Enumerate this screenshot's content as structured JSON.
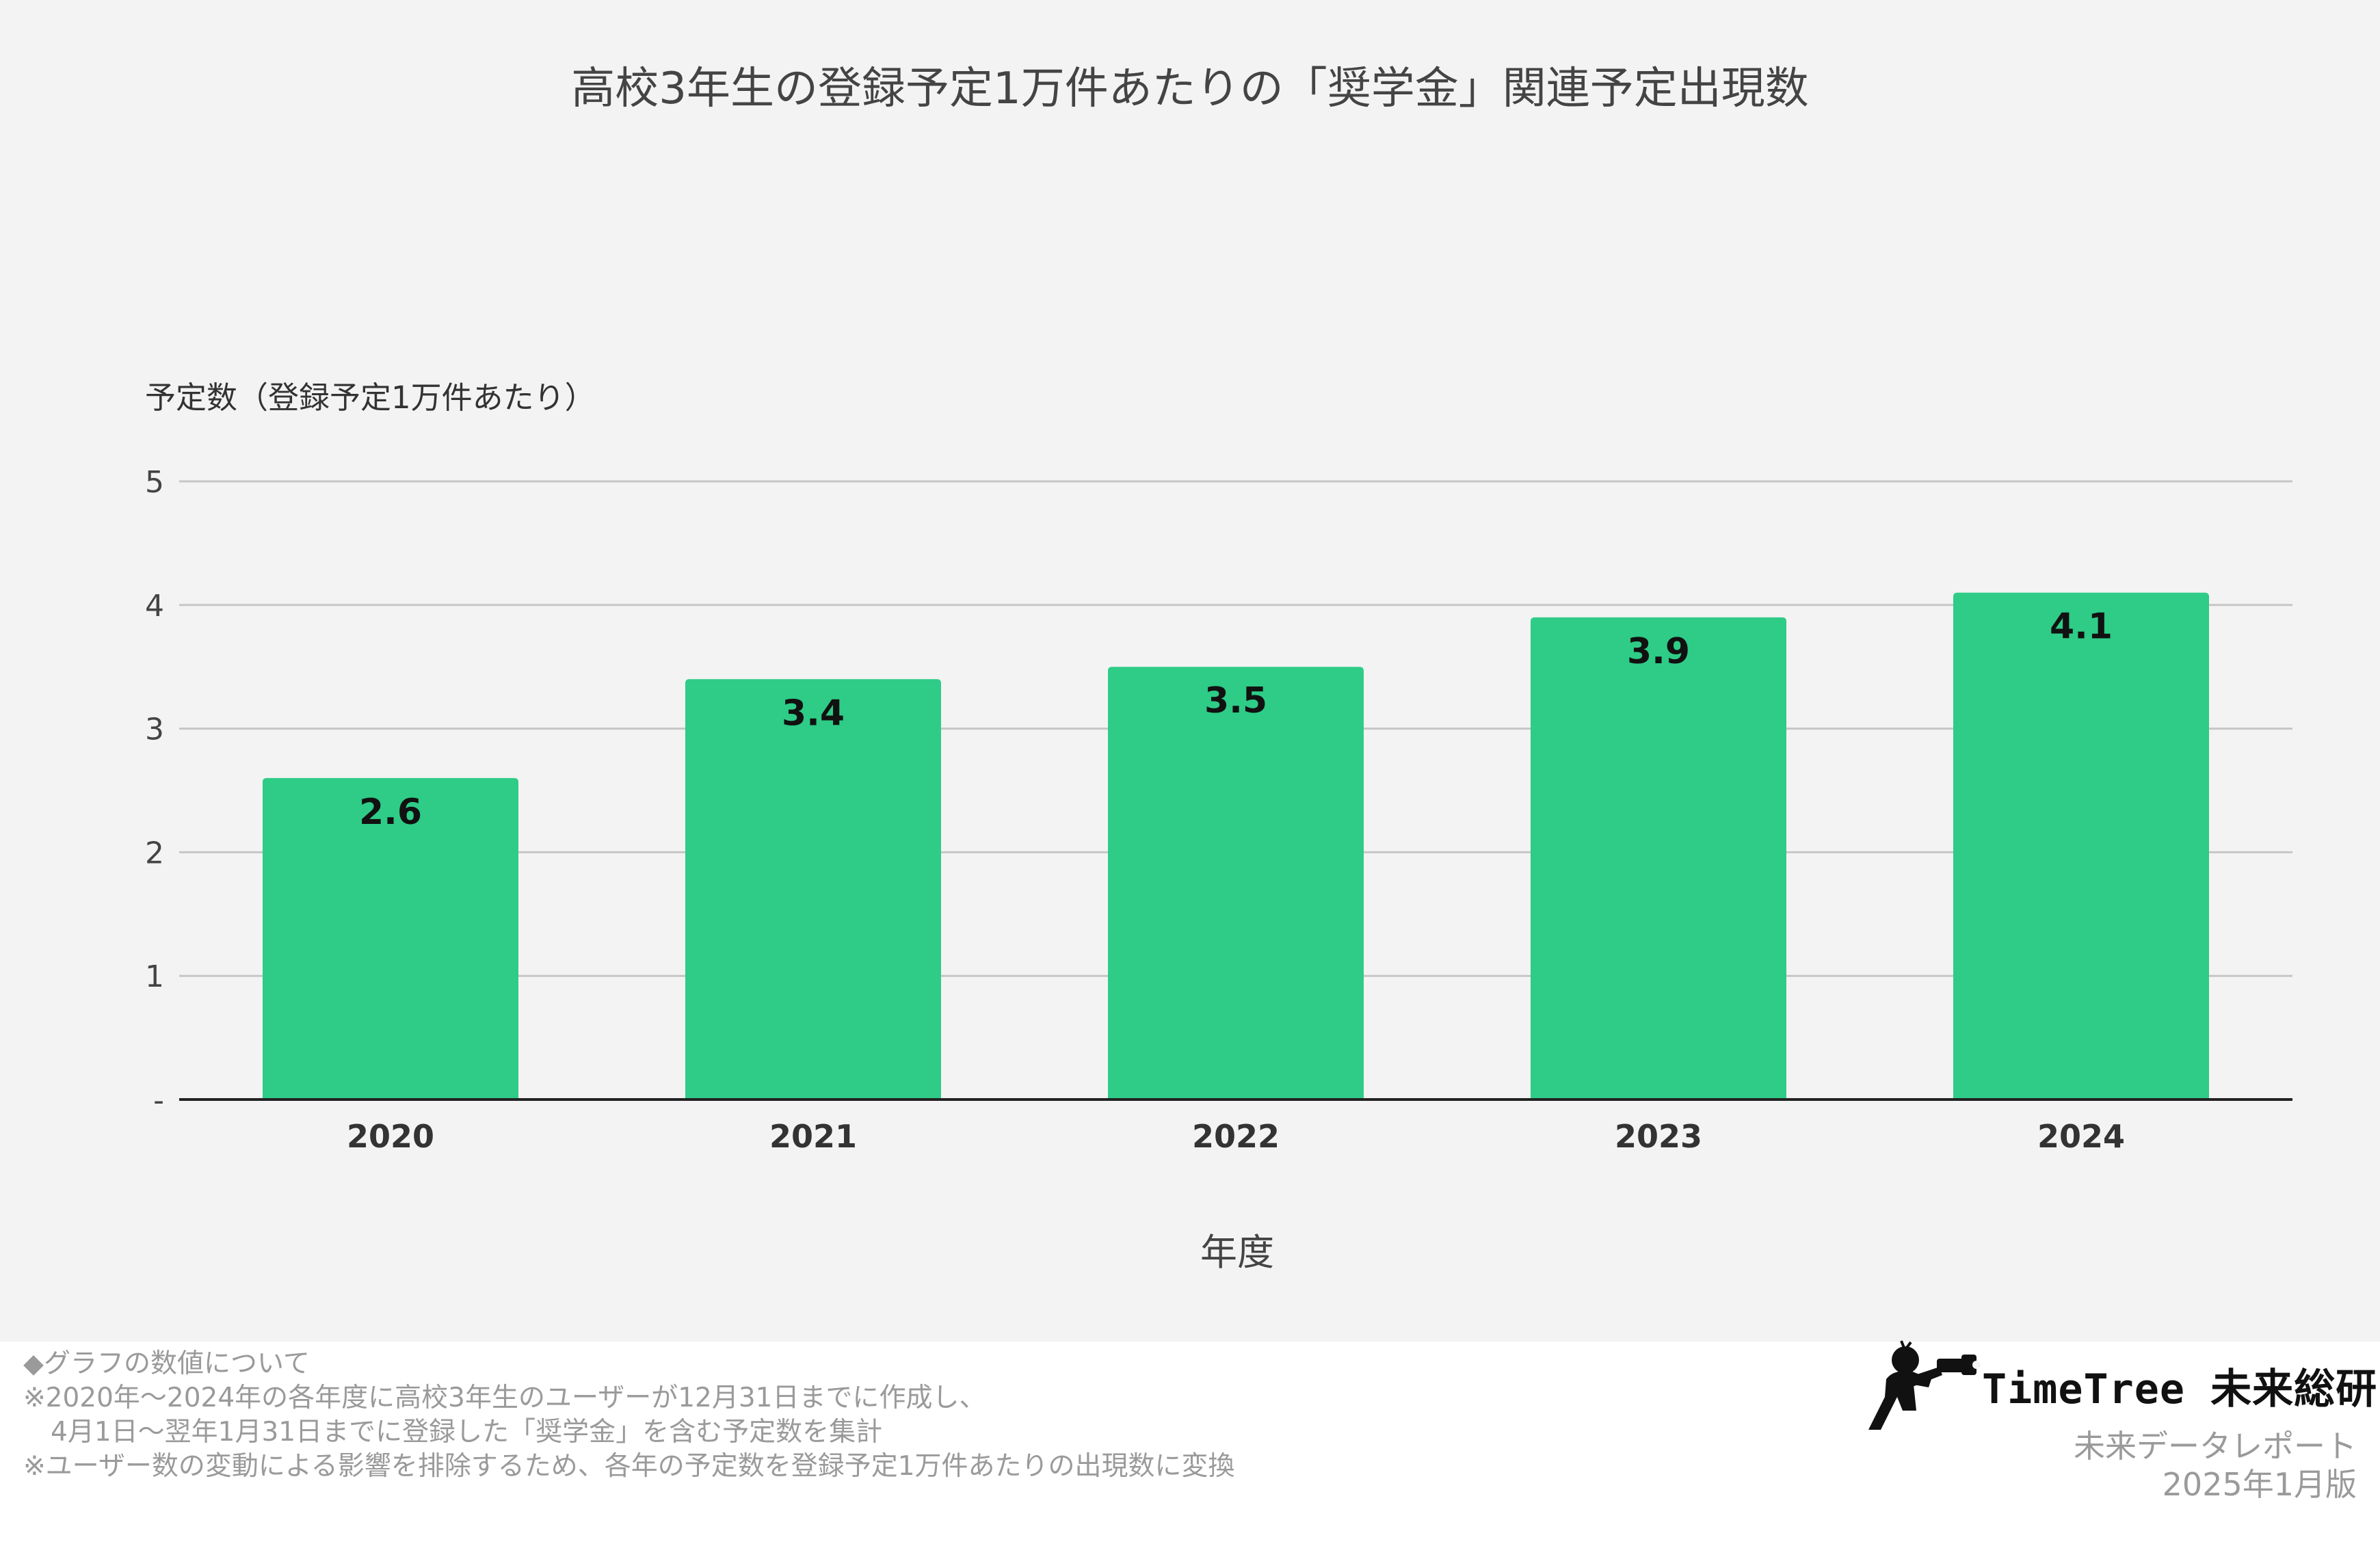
{
  "chart_data": {
    "type": "bar",
    "title": "高校3年生の登録予定1万件あたりの「奨学金」関連予定出現数",
    "ylabel": "予定数（登録予定1万件あたり）",
    "xlabel": "年度",
    "categories": [
      "2020",
      "2021",
      "2022",
      "2023",
      "2024"
    ],
    "values": [
      2.6,
      3.4,
      3.5,
      3.9,
      4.1
    ],
    "data_labels": [
      "2.6",
      "3.4",
      "3.5",
      "3.9",
      "4.1"
    ],
    "ylim": [
      0,
      5
    ],
    "yticks": [
      0,
      1,
      2,
      3,
      4,
      5
    ],
    "ytick_labels": [
      "-",
      "1",
      "2",
      "3",
      "4",
      "5"
    ],
    "grid": true,
    "legend": "none",
    "bar_color": "#2ecc87",
    "gridline_color": "#c6c6c6",
    "axis_color": "#222222"
  },
  "footnotes": {
    "heading": "◆グラフの数値について",
    "line1": "※2020年～2024年の各年度に高校3年生のユーザーが12月31日までに作成し、",
    "line2": "4月1日～翌年1月31日までに登録した「奨学金」を含む予定数を集計",
    "line3": "※ユーザー数の変動による影響を排除するため、各年の予定数を登録予定1万件あたりの出現数に変換"
  },
  "brand": {
    "logo_icon": "photographer-silhouette-icon",
    "name": "TimeTree 未来総研",
    "report_title": "未来データレポート",
    "edition": "2025年1月版"
  },
  "colors": {
    "background": "#f3f3f3",
    "footer_background": "#ffffff",
    "footnote_text": "#9a9a9a"
  }
}
